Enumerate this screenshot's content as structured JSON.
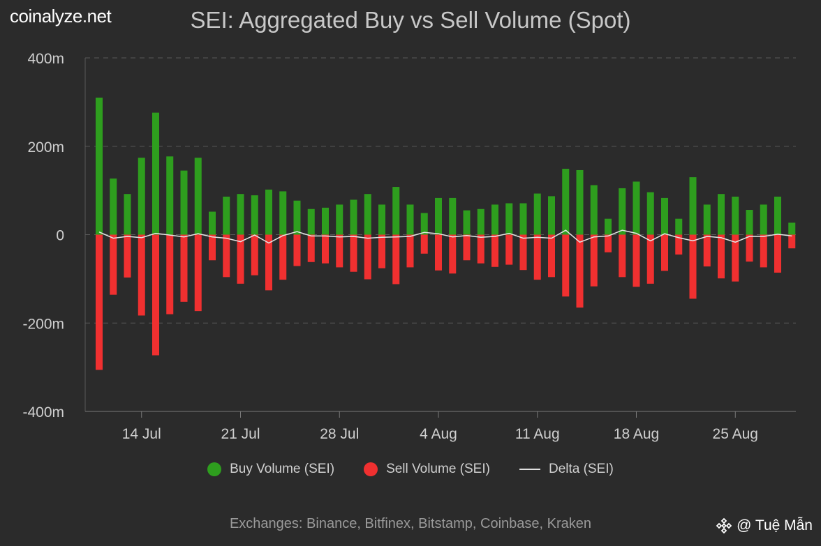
{
  "brand": "coinalyze.net",
  "footer": "Exchanges: Binance, Bitfinex, Bitstamp, Coinbase, Kraken",
  "watermark": {
    "icon": "binance-diamond-icon",
    "text": "@ Tuệ Mẫn"
  },
  "chart_data": {
    "type": "bar",
    "title": "SEI: Aggregated Buy vs Sell Volume (Spot)",
    "ylim": [
      -400,
      400
    ],
    "y_ticks": [
      400,
      200,
      0,
      -200,
      -400
    ],
    "y_tick_labels": [
      "400m",
      "200m",
      "0",
      "-200m",
      "-400m"
    ],
    "grid": true,
    "legend_position": "bottom-center",
    "categories": [
      "Jul 11",
      "Jul 12",
      "Jul 13",
      "Jul 14",
      "Jul 15",
      "Jul 16",
      "Jul 17",
      "Jul 18",
      "Jul 19",
      "Jul 20",
      "Jul 21",
      "Jul 22",
      "Jul 23",
      "Jul 24",
      "Jul 25",
      "Jul 26",
      "Jul 27",
      "Jul 28",
      "Jul 29",
      "Jul 30",
      "Jul 31",
      "Aug 1",
      "Aug 2",
      "Aug 3",
      "Aug 4",
      "Aug 5",
      "Aug 6",
      "Aug 7",
      "Aug 8",
      "Aug 9",
      "Aug 10",
      "Aug 11",
      "Aug 12",
      "Aug 13",
      "Aug 14",
      "Aug 15",
      "Aug 16",
      "Aug 17",
      "Aug 18",
      "Aug 19",
      "Aug 20",
      "Aug 21",
      "Aug 22",
      "Aug 23",
      "Aug 24",
      "Aug 25",
      "Aug 26",
      "Aug 27",
      "Aug 28",
      "Aug 29"
    ],
    "x_tick_labels": [
      {
        "label": "14 Jul",
        "index": 3
      },
      {
        "label": "21 Jul",
        "index": 10
      },
      {
        "label": "28 Jul",
        "index": 17
      },
      {
        "label": "4 Aug",
        "index": 24
      },
      {
        "label": "11 Aug",
        "index": 31
      },
      {
        "label": "18 Aug",
        "index": 38
      },
      {
        "label": "25 Aug",
        "index": 45
      }
    ],
    "series": [
      {
        "name": "Buy Volume (SEI)",
        "color": "#2e9e1e",
        "values": [
          310,
          127,
          92,
          174,
          276,
          177,
          145,
          174,
          52,
          86,
          92,
          89,
          102,
          98,
          77,
          58,
          61,
          68,
          79,
          92,
          68,
          108,
          68,
          49,
          83,
          83,
          55,
          58,
          68,
          71,
          71,
          93,
          87,
          149,
          146,
          112,
          36,
          105,
          120,
          96,
          83,
          36,
          130,
          68,
          92,
          86,
          56,
          68,
          86,
          27
        ]
      },
      {
        "name": "Sell Volume (SEI)",
        "color": "#f03030",
        "values": [
          -306,
          -136,
          -97,
          -183,
          -273,
          -180,
          -152,
          -173,
          -58,
          -96,
          -111,
          -92,
          -126,
          -102,
          -71,
          -62,
          -65,
          -74,
          -84,
          -101,
          -76,
          -112,
          -74,
          -43,
          -81,
          -88,
          -58,
          -65,
          -73,
          -68,
          -80,
          -102,
          -96,
          -140,
          -165,
          -117,
          -40,
          -96,
          -118,
          -111,
          -82,
          -45,
          -145,
          -72,
          -99,
          -106,
          -61,
          -74,
          -86,
          -31
        ]
      },
      {
        "name": "Delta (SEI)",
        "color": "#e6e6e6",
        "values": [
          6,
          -8,
          -4,
          -7,
          3,
          -1,
          -5,
          2,
          -5,
          -8,
          -16,
          -1,
          -19,
          -2,
          7,
          -3,
          -3,
          -5,
          -4,
          -8,
          -6,
          -5,
          -4,
          5,
          2,
          -5,
          -2,
          -6,
          -4,
          3,
          -8,
          -6,
          -8,
          10,
          -17,
          -5,
          -3,
          10,
          3,
          -14,
          2,
          -7,
          -14,
          -4,
          -7,
          -17,
          -4,
          -4,
          1,
          -3
        ]
      }
    ]
  }
}
